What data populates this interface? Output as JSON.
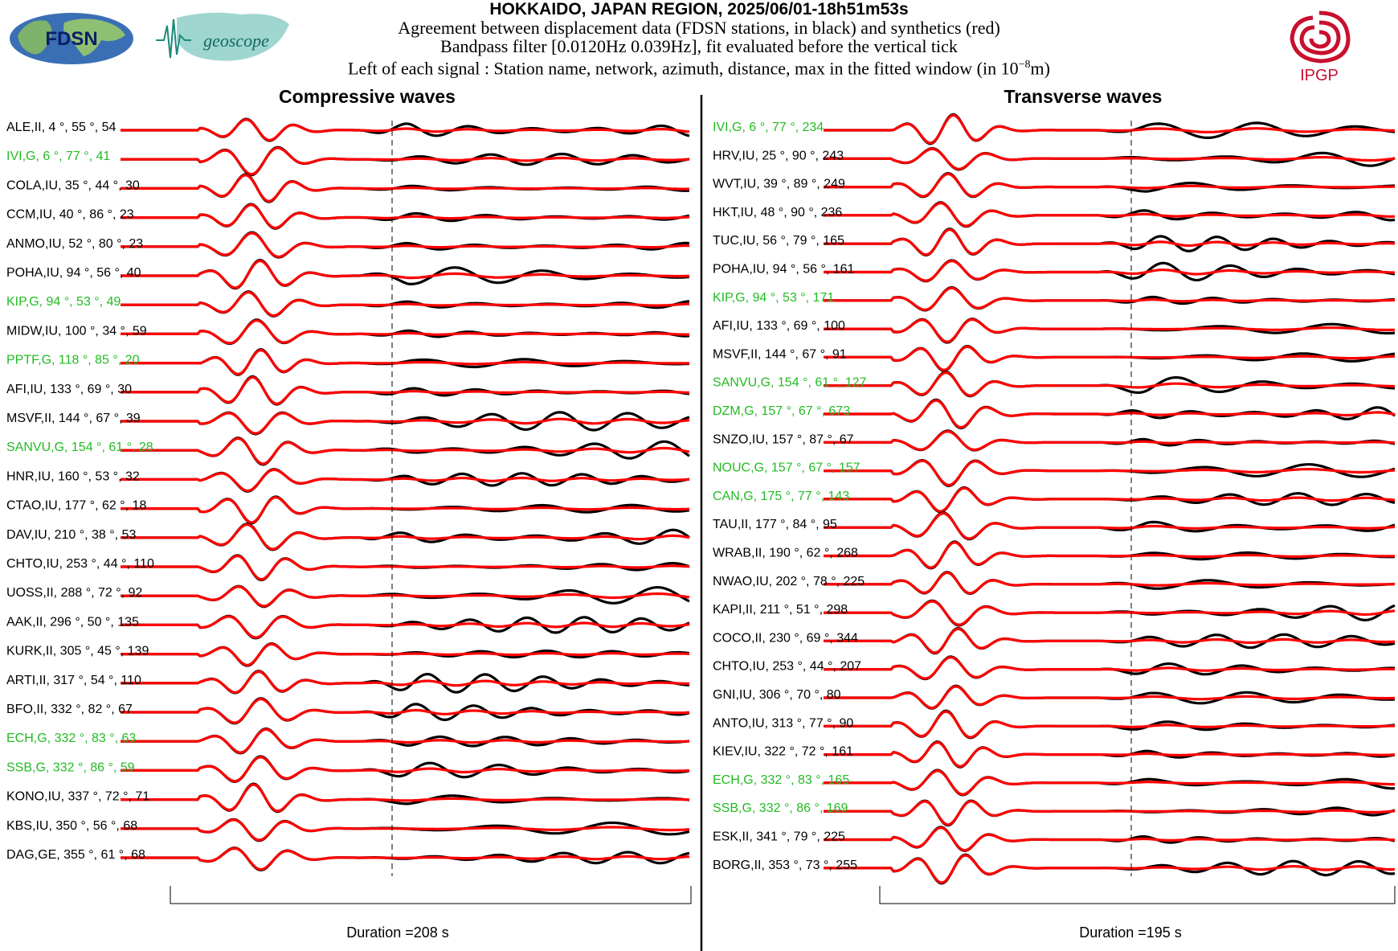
{
  "header": {
    "title": "HOKKAIDO, JAPAN REGION, 2025/06/01-18h51m53s",
    "line1": "Agreement between displacement data (FDSN stations, in black) and synthetics (red)",
    "line2": "Bandpass filter [0.0120Hz 0.039Hz], fit evaluated before the vertical tick",
    "line3": "Left of each signal : Station name, network, azimuth, distance, max in the fitted window (in 10",
    "line3_exp": "−8",
    "line3_end": "m)"
  },
  "logos": {
    "fdsn": "FDSN",
    "geoscope": "geoscope",
    "ipgp": "IPGP"
  },
  "colors": {
    "data": "#000000",
    "synthetic": "#ff0000",
    "geoscope_station": "#22bb22",
    "label": "#000000"
  },
  "chart_data": [
    {
      "type": "line",
      "title": "Compressive waves",
      "duration_label": "Duration =208 s",
      "traces": [
        {
          "station": "ALE",
          "network": "II",
          "azimuth": 4,
          "distance": 55,
          "max": 54,
          "geoscope": false
        },
        {
          "station": "IVI",
          "network": "G",
          "azimuth": 6,
          "distance": 77,
          "max": 41,
          "geoscope": true
        },
        {
          "station": "COLA",
          "network": "IU",
          "azimuth": 35,
          "distance": 44,
          "max": 30,
          "geoscope": false
        },
        {
          "station": "CCM",
          "network": "IU",
          "azimuth": 40,
          "distance": 86,
          "max": 23,
          "geoscope": false
        },
        {
          "station": "ANMO",
          "network": "IU",
          "azimuth": 52,
          "distance": 80,
          "max": 23,
          "geoscope": false
        },
        {
          "station": "POHA",
          "network": "IU",
          "azimuth": 94,
          "distance": 56,
          "max": 40,
          "geoscope": false
        },
        {
          "station": "KIP",
          "network": "G",
          "azimuth": 94,
          "distance": 53,
          "max": 49,
          "geoscope": true
        },
        {
          "station": "MIDW",
          "network": "IU",
          "azimuth": 100,
          "distance": 34,
          "max": 59,
          "geoscope": false
        },
        {
          "station": "PPTF",
          "network": "G",
          "azimuth": 118,
          "distance": 85,
          "max": 20,
          "geoscope": true
        },
        {
          "station": "AFI",
          "network": "IU",
          "azimuth": 133,
          "distance": 69,
          "max": 30,
          "geoscope": false
        },
        {
          "station": "MSVF",
          "network": "II",
          "azimuth": 144,
          "distance": 67,
          "max": 39,
          "geoscope": false
        },
        {
          "station": "SANVU",
          "network": "G",
          "azimuth": 154,
          "distance": 61,
          "max": 28,
          "geoscope": true
        },
        {
          "station": "HNR",
          "network": "IU",
          "azimuth": 160,
          "distance": 53,
          "max": 32,
          "geoscope": false
        },
        {
          "station": "CTAO",
          "network": "IU",
          "azimuth": 177,
          "distance": 62,
          "max": 18,
          "geoscope": false
        },
        {
          "station": "DAV",
          "network": "IU",
          "azimuth": 210,
          "distance": 38,
          "max": 53,
          "geoscope": false
        },
        {
          "station": "CHTO",
          "network": "IU",
          "azimuth": 253,
          "distance": 44,
          "max": 110,
          "geoscope": false
        },
        {
          "station": "UOSS",
          "network": "II",
          "azimuth": 288,
          "distance": 72,
          "max": 92,
          "geoscope": false
        },
        {
          "station": "AAK",
          "network": "II",
          "azimuth": 296,
          "distance": 50,
          "max": 135,
          "geoscope": false
        },
        {
          "station": "KURK",
          "network": "II",
          "azimuth": 305,
          "distance": 45,
          "max": 139,
          "geoscope": false
        },
        {
          "station": "ARTI",
          "network": "II",
          "azimuth": 317,
          "distance": 54,
          "max": 110,
          "geoscope": false
        },
        {
          "station": "BFO",
          "network": "II",
          "azimuth": 332,
          "distance": 82,
          "max": 67,
          "geoscope": false
        },
        {
          "station": "ECH",
          "network": "G",
          "azimuth": 332,
          "distance": 83,
          "max": 63,
          "geoscope": true
        },
        {
          "station": "SSB",
          "network": "G",
          "azimuth": 332,
          "distance": 86,
          "max": 59,
          "geoscope": true
        },
        {
          "station": "KONO",
          "network": "IU",
          "azimuth": 337,
          "distance": 72,
          "max": 71,
          "geoscope": false
        },
        {
          "station": "KBS",
          "network": "IU",
          "azimuth": 350,
          "distance": 56,
          "max": 68,
          "geoscope": false
        },
        {
          "station": "DAG",
          "network": "GE",
          "azimuth": 355,
          "distance": 61,
          "max": 68,
          "geoscope": false
        }
      ]
    },
    {
      "type": "line",
      "title": "Transverse waves",
      "duration_label": "Duration =195 s",
      "traces": [
        {
          "station": "IVI",
          "network": "G",
          "azimuth": 6,
          "distance": 77,
          "max": 234,
          "geoscope": true
        },
        {
          "station": "HRV",
          "network": "IU",
          "azimuth": 25,
          "distance": 90,
          "max": 243,
          "geoscope": false
        },
        {
          "station": "WVT",
          "network": "IU",
          "azimuth": 39,
          "distance": 89,
          "max": 249,
          "geoscope": false
        },
        {
          "station": "HKT",
          "network": "IU",
          "azimuth": 48,
          "distance": 90,
          "max": 236,
          "geoscope": false
        },
        {
          "station": "TUC",
          "network": "IU",
          "azimuth": 56,
          "distance": 79,
          "max": 165,
          "geoscope": false
        },
        {
          "station": "POHA",
          "network": "IU",
          "azimuth": 94,
          "distance": 56,
          "max": 161,
          "geoscope": false
        },
        {
          "station": "KIP",
          "network": "G",
          "azimuth": 94,
          "distance": 53,
          "max": 171,
          "geoscope": true
        },
        {
          "station": "AFI",
          "network": "IU",
          "azimuth": 133,
          "distance": 69,
          "max": 100,
          "geoscope": false
        },
        {
          "station": "MSVF",
          "network": "II",
          "azimuth": 144,
          "distance": 67,
          "max": 91,
          "geoscope": false
        },
        {
          "station": "SANVU",
          "network": "G",
          "azimuth": 154,
          "distance": 61,
          "max": 127,
          "geoscope": true
        },
        {
          "station": "DZM",
          "network": "G",
          "azimuth": 157,
          "distance": 67,
          "max": 673,
          "geoscope": true
        },
        {
          "station": "SNZO",
          "network": "IU",
          "azimuth": 157,
          "distance": 87,
          "max": 67,
          "geoscope": false
        },
        {
          "station": "NOUC",
          "network": "G",
          "azimuth": 157,
          "distance": 67,
          "max": 157,
          "geoscope": true
        },
        {
          "station": "CAN",
          "network": "G",
          "azimuth": 175,
          "distance": 77,
          "max": 143,
          "geoscope": true
        },
        {
          "station": "TAU",
          "network": "II",
          "azimuth": 177,
          "distance": 84,
          "max": 95,
          "geoscope": false
        },
        {
          "station": "WRAB",
          "network": "II",
          "azimuth": 190,
          "distance": 62,
          "max": 268,
          "geoscope": false
        },
        {
          "station": "NWAO",
          "network": "IU",
          "azimuth": 202,
          "distance": 78,
          "max": 225,
          "geoscope": false
        },
        {
          "station": "KAPI",
          "network": "II",
          "azimuth": 211,
          "distance": 51,
          "max": 298,
          "geoscope": false
        },
        {
          "station": "COCO",
          "network": "II",
          "azimuth": 230,
          "distance": 69,
          "max": 344,
          "geoscope": false
        },
        {
          "station": "CHTO",
          "network": "IU",
          "azimuth": 253,
          "distance": 44,
          "max": 207,
          "geoscope": false
        },
        {
          "station": "GNI",
          "network": "IU",
          "azimuth": 306,
          "distance": 70,
          "max": 80,
          "geoscope": false
        },
        {
          "station": "ANTO",
          "network": "IU",
          "azimuth": 313,
          "distance": 77,
          "max": 90,
          "geoscope": false
        },
        {
          "station": "KIEV",
          "network": "IU",
          "azimuth": 322,
          "distance": 72,
          "max": 161,
          "geoscope": false
        },
        {
          "station": "ECH",
          "network": "G",
          "azimuth": 332,
          "distance": 83,
          "max": 165,
          "geoscope": true
        },
        {
          "station": "SSB",
          "network": "G",
          "azimuth": 332,
          "distance": 86,
          "max": 169,
          "geoscope": true
        },
        {
          "station": "ESK",
          "network": "II",
          "azimuth": 341,
          "distance": 79,
          "max": 225,
          "geoscope": false
        },
        {
          "station": "BORG",
          "network": "II",
          "azimuth": 353,
          "distance": 73,
          "max": 255,
          "geoscope": false
        }
      ]
    }
  ]
}
